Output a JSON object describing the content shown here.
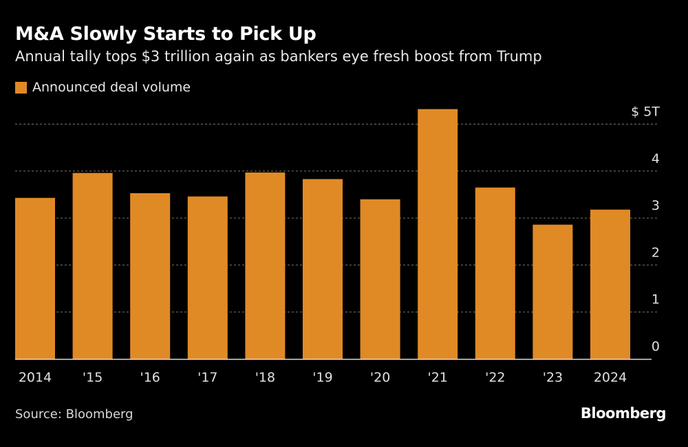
{
  "chart_data": {
    "type": "bar",
    "title": "M&A Slowly Starts to Pick Up",
    "subtitle": "Annual tally tops $3 trillion again as bankers eye fresh boost from Trump",
    "categories": [
      "2014",
      "'15",
      "'16",
      "'17",
      "'18",
      "'19",
      "'20",
      "'21",
      "'22",
      "'23",
      "2024"
    ],
    "series": [
      {
        "name": "Announced deal volume",
        "values": [
          3.43,
          3.96,
          3.53,
          3.46,
          3.97,
          3.83,
          3.4,
          5.32,
          3.65,
          2.86,
          3.18
        ]
      }
    ],
    "y_ticks": [
      "0",
      "1",
      "2",
      "3",
      "4",
      "$ 5T"
    ],
    "ylim": [
      0,
      5.3
    ],
    "grid": "horizontal dotted",
    "y_axis_position": "right",
    "legend_placement": "top-left",
    "bar_color": "#e08a26",
    "background": "#000000"
  },
  "source": "Source: Bloomberg",
  "logo": "Bloomberg"
}
